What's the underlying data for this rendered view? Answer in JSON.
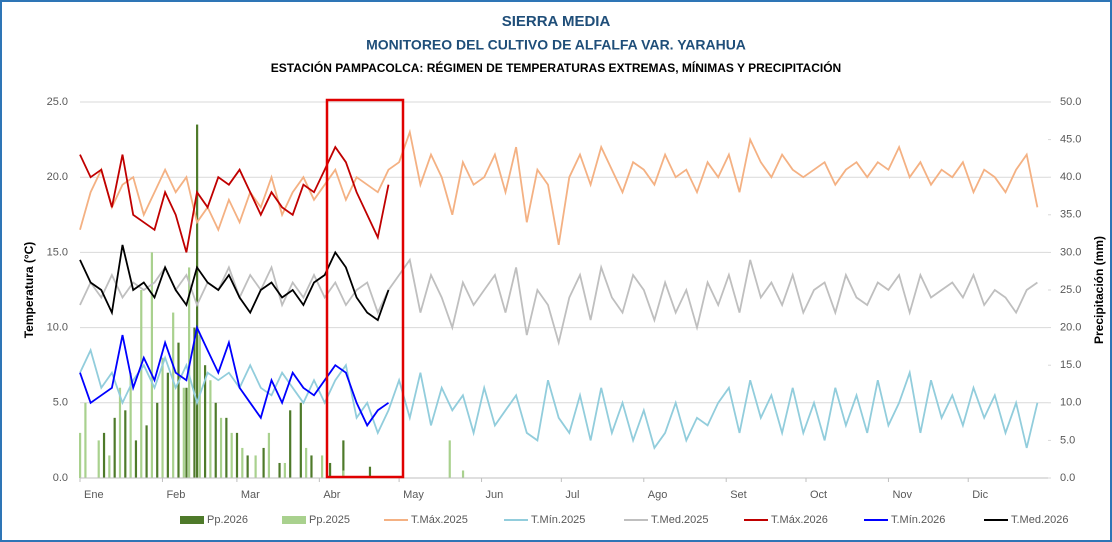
{
  "chart_data": {
    "type": "line",
    "title": "SIERRA MEDIA",
    "subtitle": "MONITOREO DEL CULTIVO DE ALFALFA VAR. YARAHUA",
    "subtitle2": "ESTACIÓN PAMPACOLCA: RÉGIMEN DE TEMPERATURAS EXTREMAS, MÍNIMAS Y PRECIPITACIÓN",
    "ylabel": "Temperatura (°C)",
    "y2label": "Precipitación (mm)",
    "xlim": [
      1,
      365
    ],
    "xticks": [
      {
        "value": 1,
        "label": "Ene"
      },
      {
        "value": 32,
        "label": "Feb"
      },
      {
        "value": 60,
        "label": "Mar"
      },
      {
        "value": 91,
        "label": "Abr"
      },
      {
        "value": 121,
        "label": "May"
      },
      {
        "value": 152,
        "label": "Jun"
      },
      {
        "value": 182,
        "label": "Jul"
      },
      {
        "value": 213,
        "label": "Ago"
      },
      {
        "value": 244,
        "label": "Set"
      },
      {
        "value": 274,
        "label": "Oct"
      },
      {
        "value": 305,
        "label": "Nov"
      },
      {
        "value": 335,
        "label": "Dic"
      }
    ],
    "ylim": [
      0,
      25
    ],
    "yticks": [
      {
        "value": 0,
        "label": "0.0"
      },
      {
        "value": 5,
        "label": "5.0"
      },
      {
        "value": 10,
        "label": "10.0"
      },
      {
        "value": 15,
        "label": "15.0"
      },
      {
        "value": 20,
        "label": "20.0"
      },
      {
        "value": 25,
        "label": "25.0"
      }
    ],
    "y2lim": [
      0,
      50
    ],
    "y2ticks": [
      {
        "value": 0,
        "label": "0.0"
      },
      {
        "value": 5,
        "label": "5.0"
      },
      {
        "value": 10,
        "label": "10.0"
      },
      {
        "value": 15,
        "label": "15.0"
      },
      {
        "value": 20,
        "label": "20.0"
      },
      {
        "value": 25,
        "label": "25.0"
      },
      {
        "value": 30,
        "label": "30.0"
      },
      {
        "value": 35,
        "label": "35.0"
      },
      {
        "value": 40,
        "label": "40.0"
      },
      {
        "value": 45,
        "label": "45.0"
      },
      {
        "value": 50,
        "label": "50.0"
      }
    ],
    "grid": true,
    "series": [
      {
        "name": "Pp.2026",
        "type": "bar",
        "axis": "y2",
        "color": "#4e7a2a",
        "x": [
          10,
          14,
          18,
          22,
          26,
          30,
          34,
          38,
          41,
          44,
          45,
          48,
          52,
          56,
          60,
          64,
          70,
          76,
          80,
          84,
          88,
          95,
          100,
          110
        ],
        "values": [
          6,
          8,
          9,
          5,
          7,
          10,
          14,
          18,
          12,
          20,
          47,
          15,
          10,
          8,
          6,
          3,
          4,
          2,
          9,
          10,
          3,
          2,
          5,
          1.5
        ]
      },
      {
        "name": "Pp.2025",
        "type": "bar",
        "axis": "y2",
        "color": "#a9d18e",
        "x": [
          1,
          3,
          8,
          12,
          16,
          20,
          24,
          28,
          32,
          36,
          40,
          42,
          46,
          50,
          54,
          58,
          62,
          67,
          72,
          78,
          86,
          92,
          100,
          140,
          145
        ],
        "values": [
          6,
          10,
          5,
          3,
          12,
          14,
          25,
          30,
          16,
          22,
          12,
          28,
          19,
          13,
          8,
          6,
          4,
          3,
          6,
          2,
          4,
          3,
          1,
          5,
          1
        ]
      },
      {
        "name": "T.Máx.2025",
        "type": "line",
        "color": "#f4b183",
        "x": [
          1,
          5,
          9,
          13,
          17,
          21,
          25,
          29,
          33,
          37,
          41,
          45,
          49,
          53,
          57,
          61,
          65,
          69,
          73,
          77,
          81,
          85,
          89,
          93,
          97,
          101,
          105,
          109,
          113,
          117,
          121,
          125,
          129,
          133,
          137,
          141,
          145,
          149,
          153,
          157,
          161,
          165,
          169,
          173,
          177,
          181,
          185,
          189,
          193,
          197,
          201,
          205,
          209,
          213,
          217,
          221,
          225,
          229,
          233,
          237,
          241,
          245,
          249,
          253,
          257,
          261,
          265,
          269,
          273,
          277,
          281,
          285,
          289,
          293,
          297,
          301,
          305,
          309,
          313,
          317,
          321,
          325,
          329,
          333,
          337,
          341,
          345,
          349,
          353,
          357,
          361
        ],
        "values": [
          16.5,
          19,
          20.5,
          18,
          19.5,
          20,
          17.5,
          19,
          20.5,
          19,
          20,
          17,
          18,
          16.5,
          18.5,
          17,
          19,
          18,
          20,
          17.5,
          19,
          20,
          18.5,
          19.5,
          20.5,
          18.5,
          20,
          19.5,
          19,
          20.5,
          21,
          23,
          19.5,
          21.5,
          20,
          17.5,
          21,
          19.5,
          20,
          21.5,
          19,
          22,
          17,
          20.5,
          19.5,
          15.5,
          20,
          21.5,
          19.5,
          22,
          20.5,
          19,
          21,
          20.5,
          19.5,
          21.5,
          20,
          20.5,
          19,
          21,
          20,
          21.5,
          19,
          22.5,
          21,
          20,
          21.5,
          20.5,
          20,
          20.5,
          21,
          19.5,
          20.5,
          21,
          20,
          21,
          20.5,
          22,
          20,
          21,
          19.5,
          20.5,
          20,
          21,
          19,
          20.5,
          20,
          19,
          20.5,
          21.5,
          18
        ]
      },
      {
        "name": "T.Mín.2025",
        "type": "line",
        "color": "#92cddc",
        "x": [
          1,
          5,
          9,
          13,
          17,
          21,
          25,
          29,
          33,
          37,
          41,
          45,
          49,
          53,
          57,
          61,
          65,
          69,
          73,
          77,
          81,
          85,
          89,
          93,
          97,
          101,
          105,
          109,
          113,
          117,
          121,
          125,
          129,
          133,
          137,
          141,
          145,
          149,
          153,
          157,
          161,
          165,
          169,
          173,
          177,
          181,
          185,
          189,
          193,
          197,
          201,
          205,
          209,
          213,
          217,
          221,
          225,
          229,
          233,
          237,
          241,
          245,
          249,
          253,
          257,
          261,
          265,
          269,
          273,
          277,
          281,
          285,
          289,
          293,
          297,
          301,
          305,
          309,
          313,
          317,
          321,
          325,
          329,
          333,
          337,
          341,
          345,
          349,
          353,
          357,
          361
        ],
        "values": [
          7,
          8.5,
          6,
          7,
          5,
          6.5,
          7.5,
          6,
          8,
          6,
          7.5,
          5,
          7,
          6.5,
          7,
          6,
          7.5,
          6,
          5.5,
          7,
          6,
          5,
          6.5,
          5,
          6.5,
          7.5,
          4,
          5,
          3,
          4.5,
          6.5,
          4,
          7,
          3.5,
          6,
          4.5,
          5.5,
          3,
          6,
          3.5,
          4.5,
          5.5,
          3,
          2.5,
          6.5,
          4,
          3,
          5.5,
          2.5,
          6,
          3,
          5,
          2.5,
          4.5,
          2,
          3,
          5,
          2.5,
          4,
          3.5,
          5,
          6,
          3,
          6.5,
          4,
          5.5,
          3,
          6,
          3,
          5,
          2.5,
          6,
          3.5,
          5.5,
          3,
          6.5,
          3.5,
          5,
          7,
          3,
          6.5,
          4,
          5.5,
          3.5,
          6,
          4,
          5.5,
          3,
          5,
          2,
          5
        ]
      },
      {
        "name": "T.Med.2025",
        "type": "line",
        "color": "#bfbfbf",
        "x": [
          1,
          5,
          9,
          13,
          17,
          21,
          25,
          29,
          33,
          37,
          41,
          45,
          49,
          53,
          57,
          61,
          65,
          69,
          73,
          77,
          81,
          85,
          89,
          93,
          97,
          101,
          105,
          109,
          113,
          117,
          121,
          125,
          129,
          133,
          137,
          141,
          145,
          149,
          153,
          157,
          161,
          165,
          169,
          173,
          177,
          181,
          185,
          189,
          193,
          197,
          201,
          205,
          209,
          213,
          217,
          221,
          225,
          229,
          233,
          237,
          241,
          245,
          249,
          253,
          257,
          261,
          265,
          269,
          273,
          277,
          281,
          285,
          289,
          293,
          297,
          301,
          305,
          309,
          313,
          317,
          321,
          325,
          329,
          333,
          337,
          341,
          345,
          349,
          353,
          357,
          361
        ],
        "values": [
          11.5,
          13,
          12,
          13.5,
          12,
          13,
          12.5,
          13,
          14,
          12.5,
          13.5,
          11.5,
          13,
          12.5,
          14,
          12,
          13.5,
          12.5,
          14,
          11.5,
          13,
          12,
          13.5,
          12,
          13,
          11.5,
          12.5,
          13,
          11,
          12.5,
          13.5,
          14.5,
          11,
          13.5,
          12,
          10,
          13,
          11.5,
          12.5,
          13.5,
          11,
          14,
          9.5,
          12.5,
          11.5,
          9,
          12,
          13.5,
          10.5,
          14,
          12,
          11,
          13.5,
          12.5,
          10.5,
          13,
          11,
          12.5,
          10,
          13,
          11.5,
          13.5,
          11,
          14.5,
          12,
          13,
          11.5,
          13.5,
          11,
          12.5,
          13,
          11,
          13.5,
          12,
          11.5,
          13,
          12.5,
          13.5,
          11,
          13.5,
          12,
          12.5,
          13,
          12,
          13.5,
          11.5,
          12.5,
          12,
          11,
          12.5,
          13
        ]
      },
      {
        "name": "T.Máx.2026",
        "type": "line",
        "color": "#c00000",
        "x": [
          1,
          5,
          9,
          13,
          17,
          21,
          25,
          29,
          33,
          37,
          41,
          45,
          49,
          53,
          57,
          61,
          65,
          69,
          73,
          77,
          81,
          85,
          89,
          93,
          97,
          101,
          105,
          109,
          113,
          117
        ],
        "values": [
          21.5,
          20,
          20.5,
          18,
          21.5,
          17.5,
          17,
          16.5,
          19,
          17.5,
          15,
          19,
          18,
          20,
          19.5,
          20.5,
          19,
          17.5,
          19,
          18,
          17.5,
          19.5,
          19,
          20.5,
          22,
          21,
          19,
          17.5,
          16,
          19.5
        ]
      },
      {
        "name": "T.Mín.2026",
        "type": "line",
        "color": "#0000ff",
        "x": [
          1,
          5,
          9,
          13,
          17,
          21,
          25,
          29,
          33,
          37,
          41,
          45,
          49,
          53,
          57,
          61,
          65,
          69,
          73,
          77,
          81,
          85,
          89,
          93,
          97,
          101,
          105,
          109,
          113,
          117
        ],
        "values": [
          7,
          5,
          5.5,
          6,
          9.5,
          6,
          8,
          6.5,
          9,
          7,
          6.5,
          10,
          8.5,
          7,
          9,
          6,
          5,
          4,
          6.5,
          5,
          7,
          6,
          5.5,
          6.5,
          7.5,
          7,
          5,
          3.5,
          4.5,
          5
        ]
      },
      {
        "name": "T.Med.2026",
        "type": "line",
        "color": "#000000",
        "x": [
          1,
          5,
          9,
          13,
          17,
          21,
          25,
          29,
          33,
          37,
          41,
          45,
          49,
          53,
          57,
          61,
          65,
          69,
          73,
          77,
          81,
          85,
          89,
          93,
          97,
          101,
          105,
          109,
          113,
          117
        ],
        "values": [
          14.5,
          13,
          12.5,
          11,
          15.5,
          12.5,
          13,
          12,
          14,
          12.5,
          11.5,
          14,
          13,
          12.5,
          13.5,
          12,
          11,
          12.5,
          13,
          12,
          12.5,
          11.5,
          13,
          13.5,
          15,
          14,
          12,
          11,
          10.5,
          12.5
        ]
      }
    ]
  }
}
